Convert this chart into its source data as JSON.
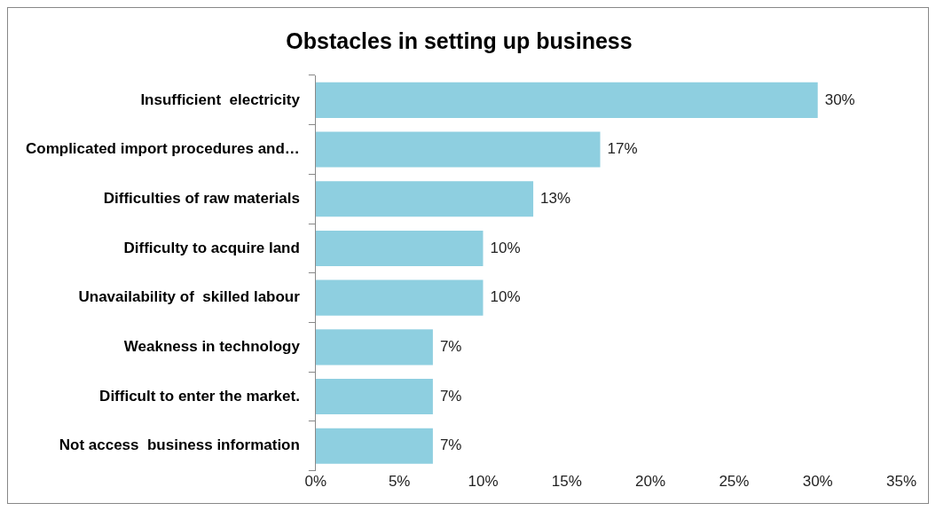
{
  "chart_data": {
    "type": "bar",
    "title": "Obstacles in setting up business",
    "orientation": "horizontal",
    "categories": [
      "Insufficient  electricity",
      "Complicated import procedures and…",
      "Difficulties of raw materials",
      "Difficulty to acquire land",
      "Unavailability of  skilled labour",
      "Weakness in technology",
      "Difficult to enter the market.",
      "Not access  business information"
    ],
    "values": [
      30,
      17,
      13,
      10,
      10,
      7,
      7,
      7
    ],
    "value_labels": [
      "30%",
      "17%",
      "13%",
      "10%",
      "10%",
      "7%",
      "7%",
      "7%"
    ],
    "color": "#8ecfe0",
    "xlim": [
      0,
      35
    ],
    "xticks": [
      {
        "value": 0,
        "label": "0%"
      },
      {
        "value": 5,
        "label": "5%"
      },
      {
        "value": 10,
        "label": "10%"
      },
      {
        "value": 15,
        "label": "15%"
      },
      {
        "value": 20,
        "label": "20%"
      },
      {
        "value": 25,
        "label": "25%"
      },
      {
        "value": 30,
        "label": "30%"
      },
      {
        "value": 35,
        "label": "35%"
      }
    ],
    "grid": false,
    "legend": false
  }
}
